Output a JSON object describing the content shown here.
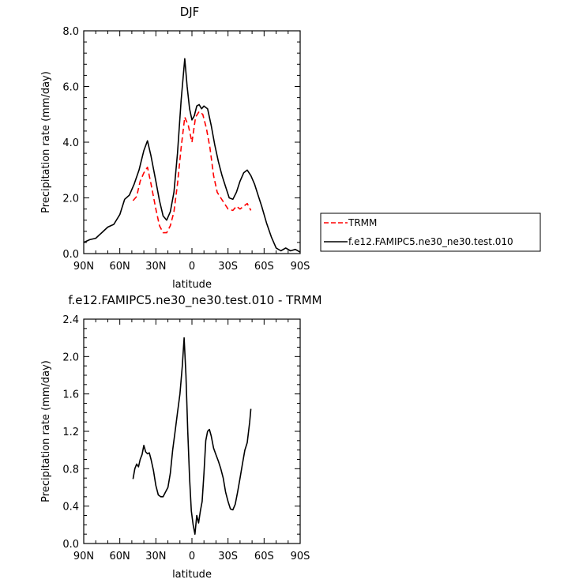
{
  "chart_data": [
    {
      "type": "line",
      "title": "DJF",
      "xlabel": "latitude",
      "ylabel": "Precipitation rate (mm/day)",
      "xlim": [
        90,
        -90
      ],
      "ylim": [
        0,
        8
      ],
      "x_ticks": [
        90,
        60,
        30,
        0,
        -30,
        -60,
        -90
      ],
      "x_tick_labels": [
        "90N",
        "60N",
        "30N",
        "0",
        "30S",
        "60S",
        "90S"
      ],
      "y_ticks": [
        0,
        2,
        4,
        6,
        8
      ],
      "y_tick_labels": [
        "0.0",
        "2.0",
        "4.0",
        "6.0",
        "8.0"
      ],
      "legend": "outside-right",
      "series": [
        {
          "name": "TRMM",
          "color": "#ff0000",
          "dash": "dashed",
          "x": [
            49,
            46,
            43,
            40,
            37,
            34,
            30,
            27,
            24,
            21,
            18,
            15,
            12,
            9,
            6,
            3,
            0,
            -3,
            -6,
            -9,
            -12,
            -15,
            -18,
            -21,
            -24,
            -27,
            -30,
            -34,
            -37,
            -40,
            -43,
            -46,
            -49
          ],
          "y": [
            1.9,
            2.05,
            2.6,
            2.9,
            3.1,
            2.5,
            1.6,
            1.0,
            0.75,
            0.75,
            1.0,
            1.5,
            2.5,
            3.8,
            4.9,
            4.6,
            4.0,
            4.9,
            5.1,
            5.0,
            4.5,
            3.8,
            2.8,
            2.2,
            2.0,
            1.8,
            1.6,
            1.55,
            1.7,
            1.6,
            1.7,
            1.8,
            1.55
          ]
        },
        {
          "name": "f.e12.FAMIPC5.ne30_ne30.test.010",
          "color": "#000000",
          "dash": "solid",
          "x": [
            90,
            85,
            80,
            75,
            70,
            65,
            60,
            56,
            52,
            48,
            44,
            40,
            37,
            34,
            30,
            27,
            24,
            21,
            18,
            15,
            12,
            9,
            6,
            4,
            2,
            0,
            -2,
            -4,
            -6,
            -8,
            -10,
            -13,
            -16,
            -19,
            -22,
            -25,
            -28,
            -31,
            -34,
            -37,
            -40,
            -43,
            -46,
            -49,
            -52,
            -55,
            -58,
            -62,
            -66,
            -70,
            -74,
            -78,
            -82,
            -86,
            -90
          ],
          "y": [
            0.4,
            0.5,
            0.55,
            0.75,
            0.95,
            1.05,
            1.4,
            1.95,
            2.1,
            2.5,
            3.0,
            3.7,
            4.05,
            3.5,
            2.6,
            1.9,
            1.35,
            1.2,
            1.5,
            2.2,
            3.6,
            5.5,
            7.0,
            6.0,
            5.2,
            4.8,
            4.95,
            5.3,
            5.35,
            5.2,
            5.3,
            5.2,
            4.6,
            3.9,
            3.3,
            2.8,
            2.4,
            2.0,
            1.95,
            2.2,
            2.6,
            2.9,
            3.0,
            2.8,
            2.5,
            2.1,
            1.7,
            1.1,
            0.6,
            0.2,
            0.1,
            0.2,
            0.1,
            0.15,
            0.05
          ]
        }
      ]
    },
    {
      "type": "line",
      "title": "f.e12.FAMIPC5.ne30_ne30.test.010 - TRMM",
      "xlabel": "latitude",
      "ylabel": "Precipitation rate (mm/day)",
      "xlim": [
        90,
        -90
      ],
      "ylim": [
        0,
        2.4
      ],
      "x_ticks": [
        90,
        60,
        30,
        0,
        -30,
        -60,
        -90
      ],
      "x_tick_labels": [
        "90N",
        "60N",
        "30N",
        "0",
        "30S",
        "60S",
        "90S"
      ],
      "y_ticks": [
        0,
        0.4,
        0.8,
        1.2,
        1.6,
        2.0,
        2.4
      ],
      "y_tick_labels": [
        "0.0",
        "0.4",
        "0.8",
        "1.2",
        "1.6",
        "2.0",
        "2.4"
      ],
      "series": [
        {
          "color": "#000000",
          "dash": "solid",
          "x": [
            49,
            47.5,
            46,
            44.5,
            43,
            41.5,
            40,
            38.5,
            37,
            35.5,
            34,
            32,
            30,
            28,
            26,
            24,
            22,
            20,
            18,
            16,
            14,
            12,
            10,
            8,
            6.5,
            5,
            3.5,
            2,
            0.5,
            -1,
            -2.5,
            -4,
            -5.5,
            -7,
            -8.5,
            -10,
            -11.5,
            -13,
            -14.5,
            -16,
            -18,
            -20,
            -22,
            -24,
            -26,
            -28,
            -30,
            -32,
            -34,
            -36,
            -38,
            -40,
            -42,
            -44,
            -46,
            -48,
            -49
          ],
          "y": [
            0.69,
            0.8,
            0.85,
            0.82,
            0.9,
            0.95,
            1.05,
            0.98,
            0.96,
            0.97,
            0.9,
            0.78,
            0.62,
            0.52,
            0.5,
            0.5,
            0.55,
            0.6,
            0.75,
            1.0,
            1.2,
            1.4,
            1.6,
            1.9,
            2.2,
            1.8,
            1.2,
            0.7,
            0.35,
            0.2,
            0.1,
            0.3,
            0.22,
            0.35,
            0.45,
            0.75,
            1.1,
            1.2,
            1.22,
            1.15,
            1.02,
            0.95,
            0.88,
            0.8,
            0.7,
            0.55,
            0.45,
            0.37,
            0.36,
            0.42,
            0.55,
            0.7,
            0.85,
            1.0,
            1.08,
            1.3,
            1.44
          ]
        }
      ]
    }
  ]
}
